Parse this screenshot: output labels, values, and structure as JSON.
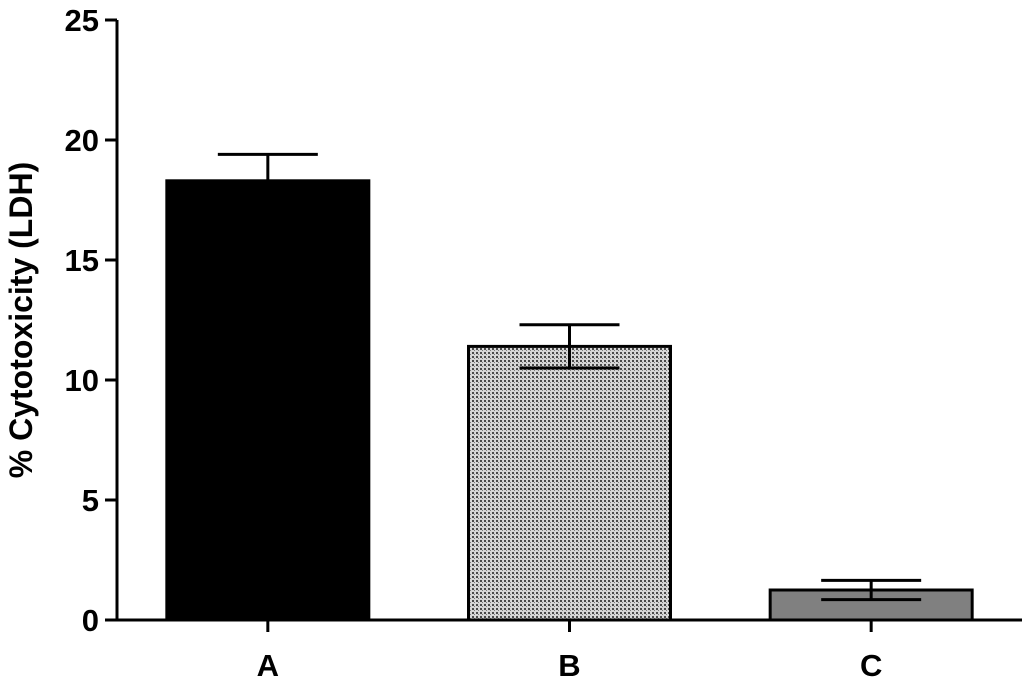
{
  "chart_data": {
    "type": "bar",
    "title": "",
    "xlabel": "",
    "ylabel": "% Cytotoxicity (LDH)",
    "categories": [
      "A",
      "B",
      "C"
    ],
    "values": [
      18.3,
      11.4,
      1.25
    ],
    "errors": [
      1.1,
      0.9,
      0.4
    ],
    "error_style": [
      "upper",
      "both",
      "both"
    ],
    "fills": [
      "#000000",
      "pattern-dots",
      "#808080"
    ],
    "ylim": [
      0,
      25
    ],
    "yticks": [
      0,
      5,
      10,
      15,
      20,
      25
    ],
    "ytick_labels": [
      "0",
      "5",
      "10",
      "15",
      "20",
      "25"
    ],
    "grid": false,
    "legend": "none"
  }
}
